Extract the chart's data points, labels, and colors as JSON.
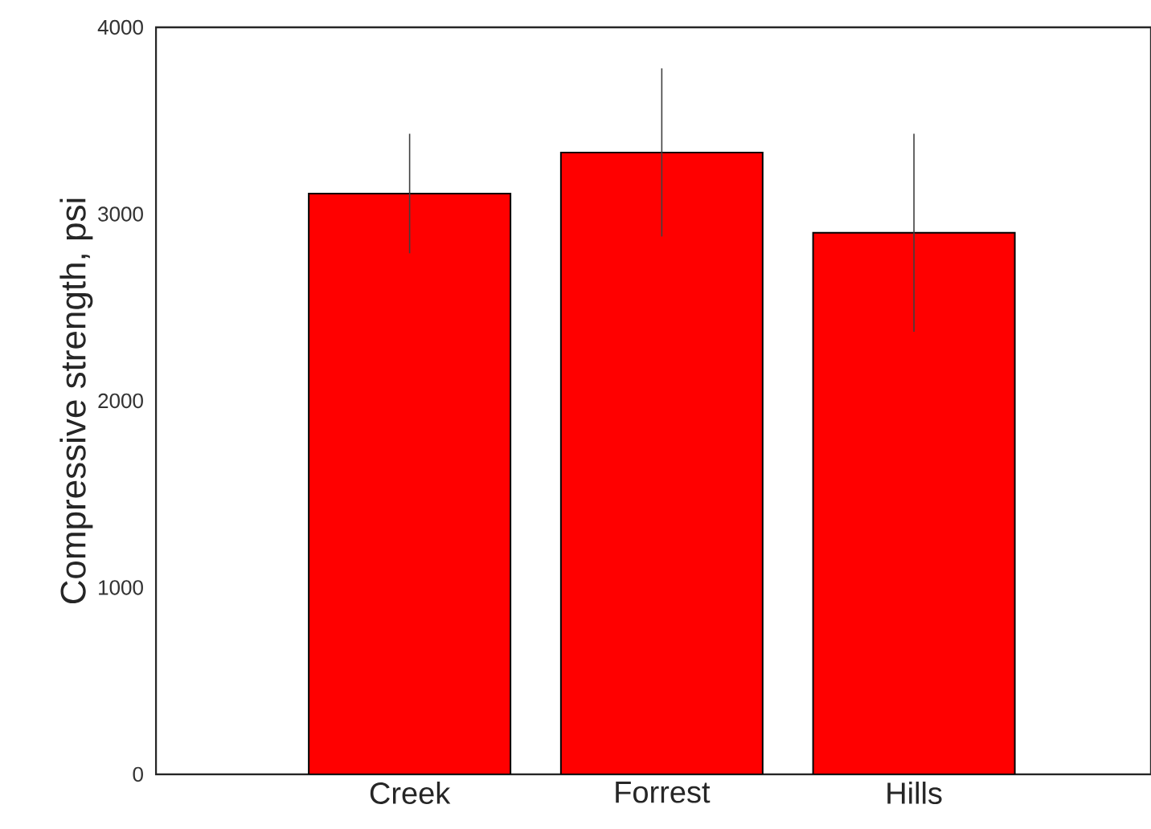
{
  "chart_data": {
    "type": "bar",
    "ylabel": "Compressive strength, psi",
    "categories": [
      "Creek",
      "Forrest",
      "Hills"
    ],
    "values": [
      3110,
      3330,
      2900
    ],
    "errors": [
      320,
      450,
      530
    ],
    "color": "#ff0000",
    "ylim": [
      0,
      4000
    ],
    "yticks": [
      0,
      1000,
      2000,
      3000,
      4000
    ]
  }
}
